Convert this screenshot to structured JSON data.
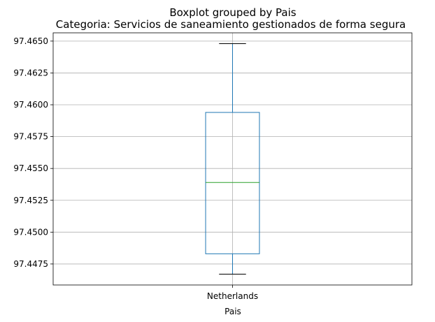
{
  "chart_data": {
    "type": "boxplot",
    "suptitle": "Boxplot grouped by Pais",
    "title": "Categoria: Servicios de saneamiento gestionados de forma segura",
    "xlabel": "Pais",
    "ylabel": "",
    "categories": [
      "Netherlands"
    ],
    "boxes": [
      {
        "category": "Netherlands",
        "whisker_low": 97.4467,
        "q1": 97.4483,
        "median": 97.4539,
        "q3": 97.4594,
        "whisker_high": 97.4648
      }
    ],
    "yticks": [
      "97.4475",
      "97.4500",
      "97.4525",
      "97.4550",
      "97.4575",
      "97.4600",
      "97.4625",
      "97.4650"
    ],
    "ylim": [
      97.44585,
      97.46565
    ],
    "grid": true,
    "colors": {
      "box": "#1f77b4",
      "median": "#2ca02c",
      "whisker": "#1f77b4",
      "cap": "#000000",
      "grid": "#b0b0b0"
    }
  }
}
